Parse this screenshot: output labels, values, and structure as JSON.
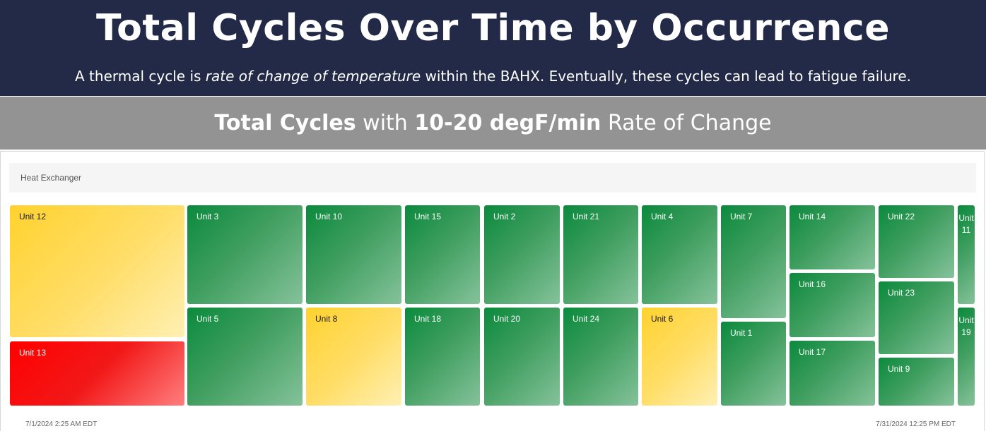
{
  "header": {
    "title": "Total Cycles Over Time by Occurrence",
    "subtitle_pre": "A thermal cycle is ",
    "subtitle_em": "rate of change of temperature",
    "subtitle_post": " within the BAHX. Eventually, these cycles can lead to fatigue failure."
  },
  "band": {
    "part1_bold": "Total Cycles",
    "part2": " with ",
    "part3_bold": "10-20 degF/min",
    "part4": " Rate of Change"
  },
  "chart_data": {
    "type": "treemap",
    "title": "Heat Exchanger",
    "date_start": "7/1/2024 2:25 AM EDT",
    "date_end": "7/31/2024 12:25 PM EDT",
    "colors": {
      "green": "#0b8a3d",
      "yellow": "#ffd22e",
      "red": "#ff0000"
    },
    "tiles": [
      {
        "label": "Unit 12",
        "color": "yellow"
      },
      {
        "label": "Unit 13",
        "color": "red"
      },
      {
        "label": "Unit 3",
        "color": "green"
      },
      {
        "label": "Unit 5",
        "color": "green"
      },
      {
        "label": "Unit 10",
        "color": "green"
      },
      {
        "label": "Unit 8",
        "color": "yellow"
      },
      {
        "label": "Unit 15",
        "color": "green"
      },
      {
        "label": "Unit 18",
        "color": "green"
      },
      {
        "label": "Unit 2",
        "color": "green"
      },
      {
        "label": "Unit 20",
        "color": "green"
      },
      {
        "label": "Unit 21",
        "color": "green"
      },
      {
        "label": "Unit 24",
        "color": "green"
      },
      {
        "label": "Unit 4",
        "color": "green"
      },
      {
        "label": "Unit 6",
        "color": "yellow"
      },
      {
        "label": "Unit 7",
        "color": "green"
      },
      {
        "label": "Unit 1",
        "color": "green"
      },
      {
        "label": "Unit 14",
        "color": "green"
      },
      {
        "label": "Unit 16",
        "color": "green"
      },
      {
        "label": "Unit 17",
        "color": "green"
      },
      {
        "label": "Unit 22",
        "color": "green"
      },
      {
        "label": "Unit 23",
        "color": "green"
      },
      {
        "label": "Unit 9",
        "color": "green"
      },
      {
        "label": "Unit 11",
        "color": "green"
      },
      {
        "label": "Unit 19",
        "color": "green"
      }
    ]
  }
}
